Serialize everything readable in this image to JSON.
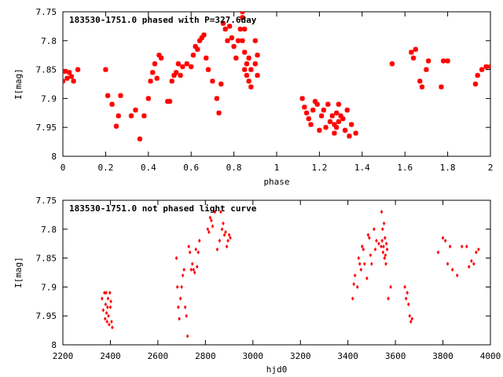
{
  "chart_data": [
    {
      "type": "scatter",
      "title": "183530-1751.0 phased with P=327.6day",
      "xlabel": "phase",
      "ylabel": "I[mag]",
      "xlim": [
        0,
        2
      ],
      "ylim": [
        8,
        7.75
      ],
      "y_inverted": true,
      "xticks": [
        "0",
        "0.2",
        "0.4",
        "0.6",
        "0.8",
        "1",
        "1.2",
        "1.4",
        "1.6",
        "1.8",
        "2"
      ],
      "yticks": [
        "7.75",
        "7.8",
        "7.85",
        "7.9",
        "7.95",
        "8"
      ],
      "marker": "star",
      "color": "#ff0000",
      "series": [
        {
          "x": [
            0.0,
            0.01,
            0.02,
            0.03,
            0.04,
            0.05,
            0.07,
            0.2,
            0.21,
            0.23,
            0.25,
            0.26,
            0.27,
            0.32,
            0.34,
            0.36,
            0.38,
            0.4,
            0.41,
            0.42,
            0.43,
            0.44,
            0.45,
            0.46,
            0.49,
            0.5,
            0.51,
            0.52,
            0.53,
            0.54,
            0.55,
            0.56,
            0.58,
            0.6,
            0.61,
            0.62,
            0.63,
            0.64,
            0.65,
            0.66,
            0.67,
            0.68,
            0.7,
            0.72,
            0.73,
            0.74,
            0.75,
            0.76,
            0.77,
            0.78,
            0.79,
            0.8,
            0.81,
            0.82,
            0.83,
            0.84,
            0.84,
            0.85,
            0.85,
            0.86,
            0.86,
            0.87,
            0.87,
            0.88,
            0.88,
            0.9,
            0.9,
            0.91,
            0.91,
            0.84,
            0.85,
            1.12,
            1.13,
            1.14,
            1.15,
            1.16,
            1.17,
            1.18,
            1.19,
            1.2,
            1.21,
            1.22,
            1.23,
            1.24,
            1.25,
            1.26,
            1.27,
            1.27,
            1.28,
            1.28,
            1.29,
            1.29,
            1.3,
            1.31,
            1.32,
            1.33,
            1.34,
            1.35,
            1.37,
            1.54,
            1.63,
            1.64,
            1.65,
            1.67,
            1.68,
            1.7,
            1.71,
            1.77,
            1.78,
            1.8,
            1.93,
            1.94,
            1.96,
            1.98,
            2.0
          ],
          "y": [
            7.87,
            7.853,
            7.865,
            7.855,
            7.862,
            7.87,
            7.85,
            7.85,
            7.895,
            7.91,
            7.948,
            7.93,
            7.895,
            7.93,
            7.92,
            7.97,
            7.93,
            7.9,
            7.87,
            7.855,
            7.84,
            7.865,
            7.825,
            7.83,
            7.905,
            7.905,
            7.87,
            7.86,
            7.855,
            7.84,
            7.86,
            7.845,
            7.84,
            7.845,
            7.825,
            7.81,
            7.815,
            7.8,
            7.795,
            7.79,
            7.83,
            7.85,
            7.87,
            7.9,
            7.925,
            7.875,
            7.77,
            7.78,
            7.8,
            7.775,
            7.795,
            7.81,
            7.83,
            7.8,
            7.78,
            7.76,
            7.8,
            7.85,
            7.82,
            7.84,
            7.86,
            7.83,
            7.87,
            7.85,
            7.88,
            7.8,
            7.84,
            7.825,
            7.86,
            7.75,
            7.78,
            7.9,
            7.915,
            7.925,
            7.935,
            7.945,
            7.92,
            7.905,
            7.91,
            7.955,
            7.93,
            7.92,
            7.95,
            7.91,
            7.94,
            7.93,
            7.945,
            7.96,
            7.925,
            7.95,
            7.91,
            7.94,
            7.93,
            7.935,
            7.955,
            7.92,
            7.965,
            7.945,
            7.96,
            7.84,
            7.82,
            7.83,
            7.815,
            7.87,
            7.88,
            7.85,
            7.835,
            7.88,
            7.835,
            7.835,
            7.875,
            7.86,
            7.85,
            7.845,
            7.845
          ]
        }
      ]
    },
    {
      "type": "scatter",
      "title": "183530-1751.0 not phased light curve",
      "xlabel": "hjd0",
      "ylabel": "I[mag]",
      "xlim": [
        2200,
        4000
      ],
      "ylim": [
        8,
        7.75
      ],
      "y_inverted": true,
      "xticks": [
        "2200",
        "2400",
        "2600",
        "2800",
        "3000",
        "3200",
        "3400",
        "3600",
        "3800",
        "4000"
      ],
      "yticks": [
        "7.75",
        "7.8",
        "7.85",
        "7.9",
        "7.95",
        "8"
      ],
      "marker": "diamond",
      "color": "#ff0000",
      "series": [
        {
          "x": [
            2365,
            2370,
            2375,
            2378,
            2380,
            2382,
            2384,
            2386,
            2388,
            2390,
            2392,
            2395,
            2398,
            2400,
            2402,
            2405,
            2408,
            2678,
            2682,
            2686,
            2690,
            2695,
            2700,
            2705,
            2710,
            2715,
            2720,
            2725,
            2730,
            2735,
            2740,
            2745,
            2750,
            2755,
            2760,
            2765,
            2770,
            2775,
            2810,
            2815,
            2820,
            2825,
            2830,
            2840,
            2850,
            2860,
            2865,
            2870,
            2875,
            2880,
            2885,
            2890,
            2895,
            2900,
            2905,
            3420,
            3425,
            3430,
            3440,
            3445,
            3450,
            3455,
            3460,
            3465,
            3470,
            3480,
            3485,
            3490,
            3495,
            3500,
            3510,
            3515,
            3520,
            3530,
            3540,
            3542,
            3544,
            3546,
            3548,
            3550,
            3552,
            3554,
            3556,
            3558,
            3560,
            3562,
            3565,
            3570,
            3580,
            3640,
            3645,
            3650,
            3655,
            3660,
            3665,
            3670,
            3780,
            3800,
            3810,
            3820,
            3830,
            3840,
            3860,
            3880,
            3900,
            3910,
            3920,
            3930,
            3940,
            3950
          ],
          "y": [
            7.92,
            7.94,
            7.91,
            7.955,
            7.93,
            7.91,
            7.945,
            7.96,
            7.935,
            7.92,
            7.95,
            7.965,
            7.91,
            7.935,
            7.925,
            7.96,
            7.97,
            7.85,
            7.9,
            7.935,
            7.955,
            7.92,
            7.9,
            7.88,
            7.87,
            7.935,
            7.95,
            7.985,
            7.83,
            7.84,
            7.87,
            7.86,
            7.87,
            7.875,
            7.835,
            7.865,
            7.84,
            7.82,
            7.8,
            7.805,
            7.78,
            7.785,
            7.795,
            7.77,
            7.835,
            7.82,
            7.77,
            7.8,
            7.79,
            7.81,
            7.805,
            7.83,
            7.82,
            7.81,
            7.815,
            7.92,
            7.895,
            7.88,
            7.9,
            7.85,
            7.86,
            7.87,
            7.83,
            7.835,
            7.86,
            7.885,
            7.81,
            7.815,
            7.845,
            7.86,
            7.8,
            7.835,
            7.82,
            7.825,
            7.83,
            7.77,
            7.82,
            7.8,
            7.84,
            7.83,
            7.79,
            7.85,
            7.815,
            7.845,
            7.86,
            7.825,
            7.835,
            7.92,
            7.9,
            7.9,
            7.92,
            7.91,
            7.93,
            7.95,
            7.96,
            7.955,
            7.84,
            7.815,
            7.82,
            7.86,
            7.83,
            7.87,
            7.88,
            7.83,
            7.83,
            7.865,
            7.855,
            7.86,
            7.84,
            7.835
          ]
        }
      ]
    }
  ]
}
